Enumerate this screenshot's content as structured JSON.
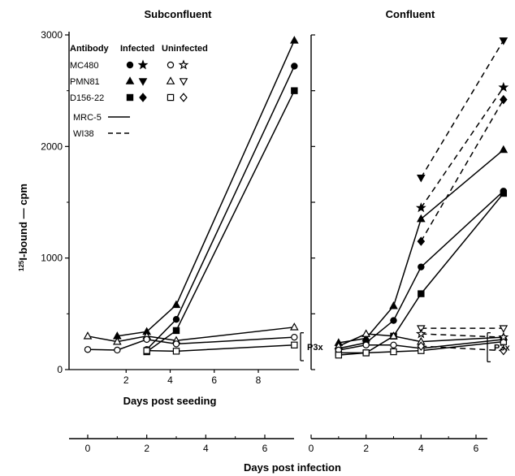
{
  "chart_data": {
    "type": "line",
    "ylabel": "125I-bound — cpm",
    "xlabel": "Days post infection",
    "ylim": [
      0,
      3000
    ],
    "yticks": [
      0,
      1000,
      2000,
      3000
    ],
    "grid": false,
    "legend": {
      "headers": [
        "Antibody",
        "Infected",
        "Uninfected"
      ],
      "rows": [
        {
          "antibody": "MC480",
          "infected_symbols": [
            "●",
            "★"
          ],
          "uninfected_symbols": [
            "○",
            "☆"
          ]
        },
        {
          "antibody": "PMN81",
          "infected_symbols": [
            "▲",
            "▼"
          ],
          "uninfected_symbols": [
            "△",
            "▽"
          ]
        },
        {
          "antibody": "D156-22",
          "infected_symbols": [
            "■",
            "◆"
          ],
          "uninfected_symbols": [
            "□",
            "◇"
          ]
        }
      ],
      "cell_lines": [
        {
          "name": "MRC-5",
          "style": "solid"
        },
        {
          "name": "WI38",
          "style": "dashed"
        }
      ]
    },
    "bracket_label": "P3x",
    "panels": [
      {
        "title": "Subconfluent",
        "inner_xlabel": "Days post seeding",
        "inner_xlim": [
          0,
          8
        ],
        "inner_xticks": [
          2,
          4,
          6,
          8
        ],
        "xlim": [
          -1,
          7.5
        ],
        "xticks": [
          0,
          2,
          4,
          6
        ],
        "bracket": [
          80,
          330
        ],
        "series": [
          {
            "name": "MC480 infected MRC-5",
            "marker": "circle",
            "filled": true,
            "dash": false,
            "x": [
              2,
              3,
              7
            ],
            "y": [
              180,
              450,
              2720
            ]
          },
          {
            "name": "PMN81 infected MRC-5",
            "marker": "tri-up",
            "filled": true,
            "dash": false,
            "x": [
              1,
              2,
              3,
              7
            ],
            "y": [
              300,
              340,
              580,
              2950
            ]
          },
          {
            "name": "D156-22 infected MRC-5",
            "marker": "square",
            "filled": true,
            "dash": false,
            "x": [
              2,
              3,
              7
            ],
            "y": [
              160,
              350,
              2500
            ]
          },
          {
            "name": "PMN81 uninfected MRC-5",
            "marker": "tri-up",
            "filled": false,
            "dash": false,
            "x": [
              0,
              1,
              2,
              3,
              7
            ],
            "y": [
              300,
              250,
              300,
              260,
              380
            ]
          },
          {
            "name": "MC480 uninfected MRC-5",
            "marker": "circle",
            "filled": false,
            "dash": false,
            "x": [
              0,
              1,
              2,
              3,
              7
            ],
            "y": [
              180,
              175,
              270,
              230,
              290
            ]
          },
          {
            "name": "D156-22 uninfected MRC-5",
            "marker": "square",
            "filled": false,
            "dash": false,
            "x": [
              2,
              3,
              7
            ],
            "y": [
              170,
              165,
              220
            ]
          }
        ]
      },
      {
        "title": "Confluent",
        "xlim": [
          0,
          7.5
        ],
        "xticks": [
          0,
          2,
          4,
          6
        ],
        "bracket": [
          70,
          330
        ],
        "series": [
          {
            "name": "MC480 infected MRC-5",
            "marker": "circle",
            "filled": true,
            "dash": false,
            "x": [
              1,
              2,
              3,
              4,
              7
            ],
            "y": [
              190,
              240,
              440,
              920,
              1600
            ]
          },
          {
            "name": "PMN81 infected MRC-5",
            "marker": "tri-up",
            "filled": true,
            "dash": false,
            "x": [
              1,
              2,
              3,
              4,
              7
            ],
            "y": [
              240,
              280,
              570,
              1350,
              1970
            ]
          },
          {
            "name": "D156-22 infected MRC-5",
            "marker": "square",
            "filled": true,
            "dash": false,
            "x": [
              1,
              2,
              3,
              4,
              7
            ],
            "y": [
              150,
              150,
              300,
              680,
              1580
            ]
          },
          {
            "name": "PMN81 infected WI38",
            "marker": "tri-down",
            "filled": true,
            "dash": true,
            "x": [
              4,
              7
            ],
            "y": [
              1720,
              2950
            ]
          },
          {
            "name": "MC480 infected WI38",
            "marker": "star",
            "filled": true,
            "dash": true,
            "x": [
              4,
              7
            ],
            "y": [
              1450,
              2530
            ]
          },
          {
            "name": "D156-22 infected WI38",
            "marker": "diamond",
            "filled": true,
            "dash": true,
            "x": [
              4,
              7
            ],
            "y": [
              1150,
              2420
            ]
          },
          {
            "name": "PMN81 uninfected MRC-5",
            "marker": "tri-up",
            "filled": false,
            "dash": false,
            "x": [
              1,
              2,
              3,
              4,
              7
            ],
            "y": [
              210,
              320,
              300,
              250,
              290
            ]
          },
          {
            "name": "MC480 uninfected MRC-5",
            "marker": "circle",
            "filled": false,
            "dash": false,
            "x": [
              1,
              2,
              3,
              4,
              7
            ],
            "y": [
              175,
              220,
              220,
              190,
              270
            ]
          },
          {
            "name": "D156-22 uninfected MRC-5",
            "marker": "square",
            "filled": false,
            "dash": false,
            "x": [
              1,
              2,
              3,
              4,
              7
            ],
            "y": [
              130,
              150,
              160,
              170,
              250
            ]
          },
          {
            "name": "PMN81 uninfected WI38",
            "marker": "tri-down",
            "filled": false,
            "dash": true,
            "x": [
              4,
              7
            ],
            "y": [
              370,
              370
            ]
          },
          {
            "name": "MC480 uninfected WI38",
            "marker": "star",
            "filled": false,
            "dash": true,
            "x": [
              4,
              7
            ],
            "y": [
              320,
              290
            ]
          },
          {
            "name": "D156-22 uninfected WI38",
            "marker": "diamond",
            "filled": false,
            "dash": true,
            "x": [
              4,
              7
            ],
            "y": [
              210,
              170
            ]
          }
        ]
      }
    ]
  }
}
